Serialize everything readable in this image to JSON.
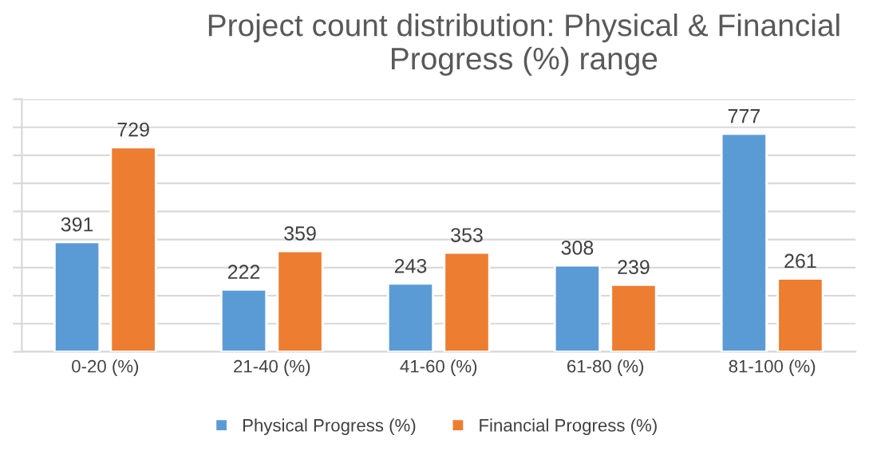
{
  "chart_data": {
    "type": "bar",
    "title": "Project count distribution: Physical & Financial Progress (%) range",
    "categories": [
      "0-20 (%)",
      "21-40 (%)",
      "41-60 (%)",
      "61-80 (%)",
      "81-100 (%)"
    ],
    "series": [
      {
        "name": "Physical Progress (%)",
        "color": "#5b9bd5",
        "values": [
          391,
          222,
          243,
          308,
          777
        ]
      },
      {
        "name": "Financial Progress (%)",
        "color": "#ed7d31",
        "values": [
          729,
          359,
          353,
          239,
          261
        ]
      }
    ],
    "ylim": [
      0,
      900
    ],
    "yticks": [
      {
        "value": 0,
        "label": null
      },
      {
        "value": 100,
        "label": null
      },
      {
        "value": 200,
        "label": null
      },
      {
        "value": 300,
        "label": null
      },
      {
        "value": 400,
        "label": null
      },
      {
        "value": 500,
        "label": null
      },
      {
        "value": 600,
        "label": null
      },
      {
        "value": 700,
        "label": null
      },
      {
        "value": 800,
        "label": null
      },
      {
        "value": 900,
        "label": null
      }
    ],
    "tick_labels": "x",
    "grid": "y",
    "legend": "bottom",
    "data_labels": true
  }
}
